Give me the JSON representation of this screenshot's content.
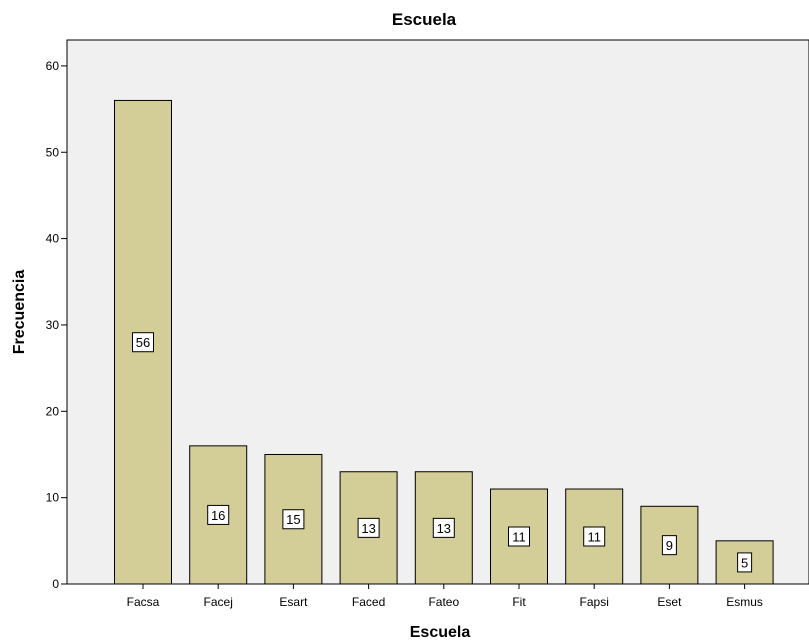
{
  "chart_data": {
    "type": "bar",
    "title": "Escuela",
    "xlabel": "Escuela",
    "ylabel": "Frecuencia",
    "categories": [
      "Facsa",
      "Facej",
      "Esart",
      "Faced",
      "Fateo",
      "Fit",
      "Fapsi",
      "Eset",
      "Esmus"
    ],
    "values": [
      56,
      16,
      15,
      13,
      13,
      11,
      11,
      9,
      5
    ],
    "data_labels": [
      "56",
      "16",
      "15",
      "13",
      "13",
      "11",
      "11",
      "9",
      "5"
    ],
    "yticks": [
      "0",
      "10",
      "20",
      "30",
      "40",
      "50",
      "60"
    ],
    "ytick_values": [
      0,
      10,
      20,
      30,
      40,
      50,
      60
    ],
    "ylim": [
      0,
      63
    ],
    "grid": false,
    "legend": "none",
    "colors": {
      "plot_background": "#f0f0f0",
      "bar_fill": "#d3ce97",
      "bar_stroke": "#000000",
      "label_box": "#ffffff"
    }
  }
}
